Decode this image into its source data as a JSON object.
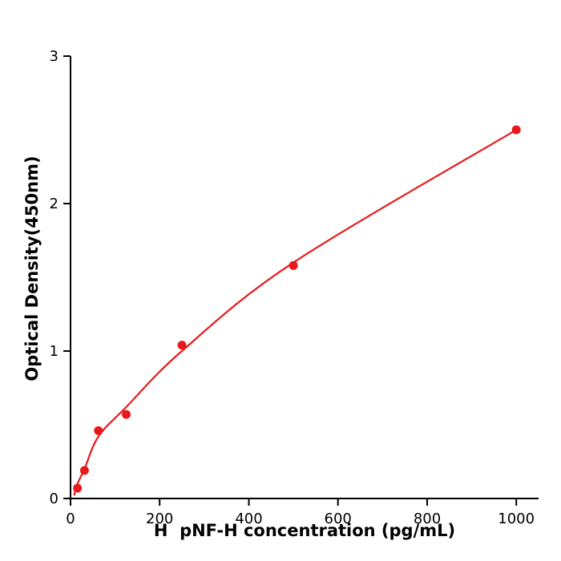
{
  "chart_data": {
    "type": "scatter",
    "xlabel": "H  pNF-H concentration (pg/mL)",
    "ylabel": "Optical Density(450nm)",
    "xlim": [
      0,
      1050
    ],
    "ylim": [
      0,
      3
    ],
    "x_ticks": [
      0,
      200,
      400,
      600,
      800,
      1000
    ],
    "y_ticks": [
      0,
      1,
      2,
      3
    ],
    "grid": false,
    "legend": "none",
    "accent_color": "#e8191c",
    "axis_color": "#000000",
    "series": [
      {
        "name": "fitted-curve",
        "type": "line",
        "color": "#e8191c",
        "points": [
          [
            8,
            0.02
          ],
          [
            15.6,
            0.1
          ],
          [
            31.2,
            0.2
          ],
          [
            62.5,
            0.42
          ],
          [
            125,
            0.62
          ],
          [
            250,
            1.0
          ],
          [
            500,
            1.6
          ],
          [
            1000,
            2.5
          ]
        ]
      },
      {
        "name": "standard-points",
        "type": "scatter",
        "color": "#e8191c",
        "points": [
          [
            15.6,
            0.07
          ],
          [
            31.2,
            0.19
          ],
          [
            62.5,
            0.46
          ],
          [
            125,
            0.57
          ],
          [
            250,
            1.04
          ],
          [
            500,
            1.58
          ],
          [
            1000,
            2.5
          ]
        ]
      }
    ]
  }
}
